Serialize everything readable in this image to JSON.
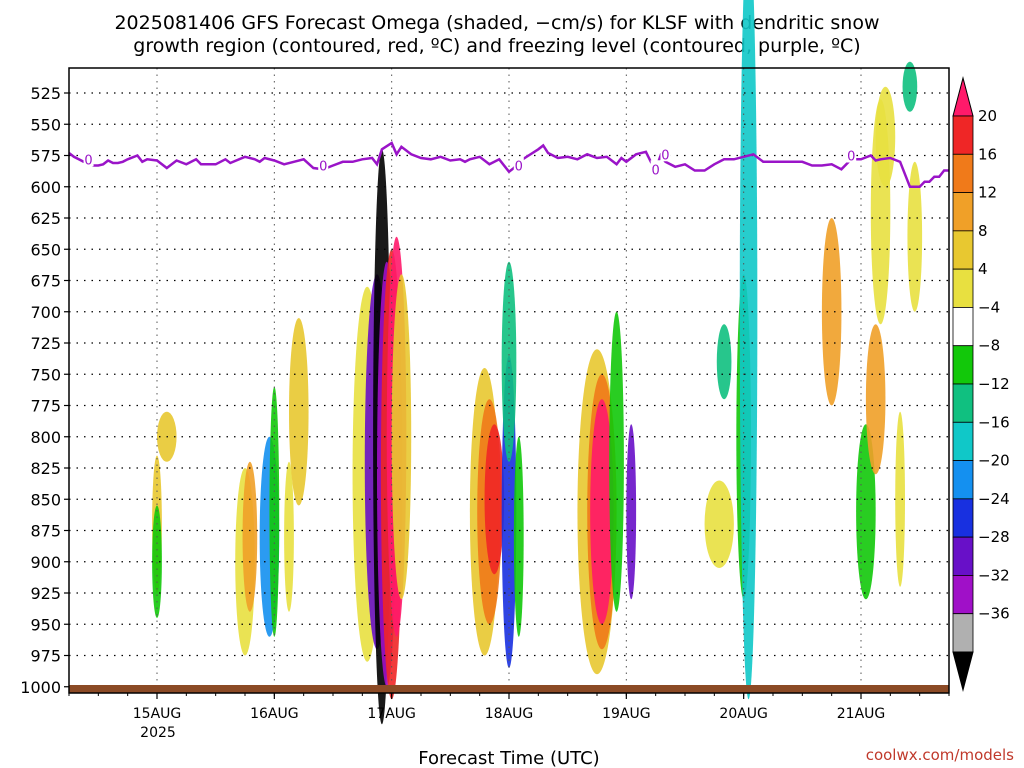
{
  "chart_data": {
    "type": "heatmap",
    "title_line1": "2025081406 GFS Forecast Omega (shaded, −cm/s) for KLSF with dendritic snow",
    "title_line2": "growth region (contoured, red, ºC) and freezing level (contoured, purple, ºC)",
    "xlabel": "Forecast Time (UTC)",
    "credit": "coolwx.com/models",
    "x_ticks": [
      "15AUG",
      "16AUG",
      "17AUG",
      "18AUG",
      "19AUG",
      "20AUG",
      "21AUG"
    ],
    "x_year": "2025",
    "x_range_hours": [
      0,
      180
    ],
    "y_ticks": [
      525,
      550,
      575,
      600,
      625,
      650,
      675,
      700,
      725,
      750,
      775,
      800,
      825,
      850,
      875,
      900,
      925,
      950,
      975,
      1000
    ],
    "y_range": [
      505,
      1005
    ],
    "grid": true,
    "colorbar": {
      "ticks": [
        "20",
        "16",
        "12",
        "8",
        "4",
        "−4",
        "−8",
        "−12",
        "−16",
        "−20",
        "−24",
        "−28",
        "−32",
        "−36"
      ],
      "colors": [
        "#ff1a6a",
        "#ef2626",
        "#f07a1a",
        "#f0a028",
        "#e8c830",
        "#e8e040",
        "#ffffff",
        "#12c80a",
        "#10c080",
        "#10c8c8",
        "#1490f0",
        "#1830e0",
        "#6810c8",
        "#a010c8",
        "#b0b0b0",
        "#000000"
      ]
    },
    "freezing_level_label": "0",
    "freezing_level_hpa": [
      [
        0,
        573
      ],
      [
        1,
        576
      ],
      [
        2,
        578
      ],
      [
        3,
        580
      ],
      [
        4,
        581
      ],
      [
        5,
        583
      ],
      [
        6,
        583
      ],
      [
        7,
        582
      ],
      [
        8,
        579
      ],
      [
        9,
        581
      ],
      [
        10,
        581
      ],
      [
        11,
        580
      ],
      [
        12,
        578
      ],
      [
        14,
        575
      ],
      [
        15,
        580
      ],
      [
        16,
        578
      ],
      [
        18,
        579
      ],
      [
        20,
        585
      ],
      [
        21,
        582
      ],
      [
        22,
        579
      ],
      [
        24,
        582
      ],
      [
        26,
        578
      ],
      [
        27,
        582
      ],
      [
        30,
        582
      ],
      [
        32,
        578
      ],
      [
        33,
        581
      ],
      [
        36,
        576
      ],
      [
        38,
        578
      ],
      [
        39,
        580
      ],
      [
        40,
        577
      ],
      [
        42,
        579
      ],
      [
        44,
        582
      ],
      [
        46,
        580
      ],
      [
        48,
        578
      ],
      [
        50,
        585
      ],
      [
        52,
        586
      ],
      [
        54,
        583
      ],
      [
        56,
        580
      ],
      [
        58,
        580
      ],
      [
        60,
        578
      ],
      [
        62,
        577
      ],
      [
        63,
        582
      ],
      [
        64,
        570
      ],
      [
        66,
        565
      ],
      [
        67,
        574
      ],
      [
        68,
        568
      ],
      [
        70,
        574
      ],
      [
        72,
        577
      ],
      [
        74,
        578
      ],
      [
        76,
        576
      ],
      [
        78,
        579
      ],
      [
        80,
        578
      ],
      [
        81,
        580
      ],
      [
        82,
        578
      ],
      [
        84,
        576
      ],
      [
        86,
        582
      ],
      [
        88,
        578
      ],
      [
        90,
        588
      ],
      [
        91,
        585
      ],
      [
        92,
        580
      ],
      [
        94,
        575
      ],
      [
        96,
        570
      ],
      [
        97,
        567
      ],
      [
        98,
        573
      ],
      [
        100,
        577
      ],
      [
        102,
        576
      ],
      [
        104,
        578
      ],
      [
        106,
        574
      ],
      [
        108,
        577
      ],
      [
        110,
        576
      ],
      [
        112,
        582
      ],
      [
        113,
        577
      ],
      [
        114,
        580
      ],
      [
        116,
        574
      ],
      [
        118,
        572
      ],
      [
        119,
        580
      ],
      [
        120,
        586
      ],
      [
        121,
        575
      ],
      [
        122,
        580
      ],
      [
        124,
        584
      ],
      [
        126,
        582
      ],
      [
        128,
        587
      ],
      [
        130,
        587
      ],
      [
        132,
        582
      ],
      [
        134,
        578
      ],
      [
        136,
        578
      ],
      [
        138,
        576
      ],
      [
        140,
        574
      ],
      [
        142,
        580
      ],
      [
        144,
        580
      ],
      [
        146,
        580
      ],
      [
        148,
        580
      ],
      [
        150,
        580
      ],
      [
        152,
        583
      ],
      [
        154,
        583
      ],
      [
        156,
        582
      ],
      [
        158,
        586
      ],
      [
        160,
        578
      ],
      [
        162,
        578
      ],
      [
        164,
        575
      ],
      [
        165,
        579
      ],
      [
        166,
        578
      ],
      [
        168,
        577
      ],
      [
        170,
        580
      ],
      [
        172,
        600
      ],
      [
        174,
        600
      ],
      [
        175,
        596
      ],
      [
        176,
        596
      ],
      [
        177,
        592
      ],
      [
        178,
        592
      ],
      [
        179,
        587
      ],
      [
        180,
        587
      ]
    ],
    "colorbar_values_scale": "negative omega in cm/s"
  }
}
